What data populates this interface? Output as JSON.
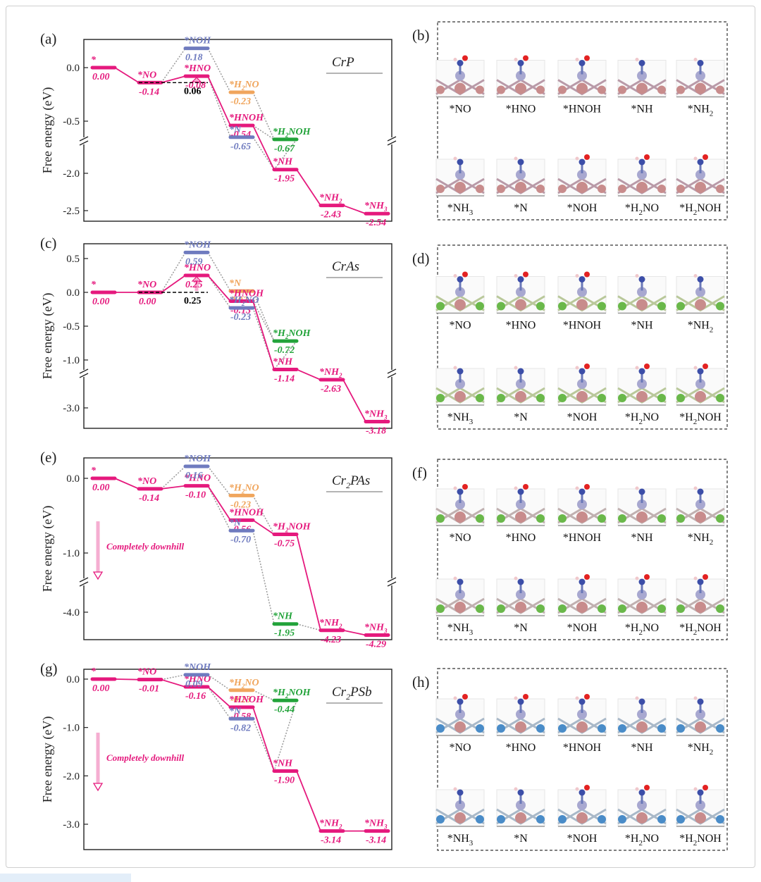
{
  "colors": {
    "magenta": "#e5197d",
    "blue": "#6f7bbf",
    "orange": "#f0a55c",
    "green": "#22a33a",
    "grey_dash": "#9a9a9a",
    "axis": "#222222",
    "N_atom": "#3c4ea8",
    "O_atom": "#e32222",
    "H_atom": "#f0c8cc",
    "Cr_atom": "#c88c8c",
    "P_atom": "#a8a8d0",
    "As_atom": "#6ab84a",
    "Sb_atom": "#4a8cc8"
  },
  "panels": [
    {
      "letter": "(a)",
      "title": "CrP",
      "ylabel": "Free energy (eV)",
      "upper_ticks": [
        0.0,
        -0.5
      ],
      "lower_ticks": [
        -2.0,
        -2.5
      ],
      "upper_labels": [
        "0.0",
        "-0.5"
      ],
      "lower_labels": [
        "-2.0",
        "-2.5"
      ],
      "barrier_label": "0.06",
      "levels": [
        {
          "species": "*",
          "sub": "",
          "tail": "",
          "value": "0.00",
          "series": "magenta"
        },
        {
          "species": "*NO",
          "sub": "",
          "tail": "",
          "value": "-0.14",
          "series": "magenta"
        },
        {
          "species": "*HNO",
          "sub": "",
          "tail": "",
          "value": "-0.08",
          "series": "magenta"
        },
        {
          "species": "*NOH",
          "sub": "",
          "tail": "",
          "value": "0.18",
          "series": "blue"
        },
        {
          "species": "*H",
          "sub": "2",
          "tail": "NO",
          "value": "-0.23",
          "series": "orange"
        },
        {
          "species": "*HNOH",
          "sub": "",
          "tail": "",
          "value": "-0.54",
          "series": "magenta"
        },
        {
          "species": "*N",
          "sub": "",
          "tail": "",
          "value": "-0.65",
          "series": "blue"
        },
        {
          "species": "*H",
          "sub": "2",
          "tail": "NOH",
          "value": "-0.67",
          "series": "green"
        },
        {
          "species": "*NH",
          "sub": "",
          "tail": "",
          "value": "-1.95",
          "series": "magenta"
        },
        {
          "species": "*NH",
          "sub": "2",
          "tail": "",
          "value": "-2.43",
          "series": "magenta"
        },
        {
          "species": "*NH",
          "sub": "3",
          "tail": "",
          "value": "-2.54",
          "series": "magenta"
        }
      ],
      "annotation": ""
    },
    {
      "letter": "(c)",
      "title": "CrAs",
      "ylabel": "Free energy (eV)",
      "upper_ticks": [
        0.5,
        0.0,
        -0.5,
        -1.0
      ],
      "lower_ticks": [
        -3.0
      ],
      "upper_labels": [
        "0.5",
        "0.0",
        "-0.5",
        "-1.0"
      ],
      "lower_labels": [
        "-3.0"
      ],
      "barrier_label": "0.25",
      "levels": [
        {
          "species": "*",
          "sub": "",
          "tail": "",
          "value": "0.00",
          "series": "magenta"
        },
        {
          "species": "*NO",
          "sub": "",
          "tail": "",
          "value": "0.00",
          "series": "magenta"
        },
        {
          "species": "*HNO",
          "sub": "",
          "tail": "",
          "value": "0.25",
          "series": "magenta"
        },
        {
          "species": "*NOH",
          "sub": "",
          "tail": "",
          "value": "0.59",
          "series": "blue"
        },
        {
          "species": "*N",
          "sub": "",
          "tail": "",
          "value": "0.02",
          "series": "orange"
        },
        {
          "species": "*HNOH",
          "sub": "",
          "tail": "",
          "value": "-0.13",
          "series": "magenta"
        },
        {
          "species": "*H",
          "sub": "2",
          "tail": "NO",
          "value": "-0.23",
          "series": "blue"
        },
        {
          "species": "*H",
          "sub": "2",
          "tail": "NOH",
          "value": "-0.72",
          "series": "green"
        },
        {
          "species": "*NH",
          "sub": "",
          "tail": "",
          "value": "-1.14",
          "series": "magenta"
        },
        {
          "species": "*NH",
          "sub": "2",
          "tail": "",
          "value": "-2.63",
          "series": "magenta"
        },
        {
          "species": "*NH",
          "sub": "3",
          "tail": "",
          "value": "-3.18",
          "series": "magenta"
        }
      ],
      "annotation": ""
    },
    {
      "letter": "(e)",
      "title": "Cr",
      "title_sub": "2",
      "title_tail": "PAs",
      "ylabel": "Free energy (eV)",
      "upper_ticks": [
        0.0,
        -1.0
      ],
      "lower_ticks": [
        -4.0
      ],
      "upper_labels": [
        "0.0",
        "-1.0"
      ],
      "lower_labels": [
        "-4.0"
      ],
      "barrier_label": "",
      "levels": [
        {
          "species": "*",
          "sub": "",
          "tail": "",
          "value": "0.00",
          "series": "magenta"
        },
        {
          "species": "*NO",
          "sub": "",
          "tail": "",
          "value": "-0.14",
          "series": "magenta"
        },
        {
          "species": "*HNO",
          "sub": "",
          "tail": "",
          "value": "-0.10",
          "series": "magenta"
        },
        {
          "species": "*NOH",
          "sub": "",
          "tail": "",
          "value": "0.16",
          "series": "blue"
        },
        {
          "species": "*H",
          "sub": "2",
          "tail": "NO",
          "value": "-0.23",
          "series": "orange"
        },
        {
          "species": "*HNOH",
          "sub": "",
          "tail": "",
          "value": "-0.56",
          "series": "magenta"
        },
        {
          "species": "*N",
          "sub": "",
          "tail": "",
          "value": "-0.70",
          "series": "blue"
        },
        {
          "species": "*H",
          "sub": "2",
          "tail": "NOH",
          "value": "-0.75",
          "series": "magenta"
        },
        {
          "species": "*NH",
          "sub": "",
          "tail": "",
          "value": "-1.95",
          "series": "green"
        },
        {
          "species": "*NH",
          "sub": "2",
          "tail": "",
          "value": "-4.23",
          "series": "magenta"
        },
        {
          "species": "*NH",
          "sub": "3",
          "tail": "",
          "value": "-4.29",
          "series": "magenta"
        }
      ],
      "annotation": "Completely downhill"
    },
    {
      "letter": "(g)",
      "title": "Cr",
      "title_sub": "2",
      "title_tail": "PSb",
      "ylabel": "Free energy (eV)",
      "upper_ticks": [
        0.0,
        -1.0,
        -2.0,
        -3.0
      ],
      "lower_ticks": [],
      "upper_labels": [
        "0.0",
        "-1.0",
        "-2.0",
        "-3.0"
      ],
      "lower_labels": [],
      "barrier_label": "",
      "levels": [
        {
          "species": "*",
          "sub": "",
          "tail": "",
          "value": "0.00",
          "series": "magenta"
        },
        {
          "species": "*NO",
          "sub": "",
          "tail": "",
          "value": "-0.01",
          "series": "magenta"
        },
        {
          "species": "*HNO",
          "sub": "",
          "tail": "",
          "value": "-0.16",
          "series": "magenta"
        },
        {
          "species": "*NOH",
          "sub": "",
          "tail": "",
          "value": "0.09",
          "series": "blue"
        },
        {
          "species": "*H",
          "sub": "2",
          "tail": "NO",
          "value": "-0.23",
          "series": "orange"
        },
        {
          "species": "*HNOH",
          "sub": "",
          "tail": "",
          "value": "-0.58",
          "series": "magenta"
        },
        {
          "species": "*N",
          "sub": "",
          "tail": "",
          "value": "-0.82",
          "series": "blue"
        },
        {
          "species": "*H",
          "sub": "2",
          "tail": "NOH",
          "value": "-0.44",
          "series": "green"
        },
        {
          "species": "*NH",
          "sub": "",
          "tail": "",
          "value": "-1.90",
          "series": "magenta"
        },
        {
          "species": "*NH",
          "sub": "2",
          "tail": "",
          "value": "-3.14",
          "series": "magenta"
        },
        {
          "species": "*NH",
          "sub": "3",
          "tail": "",
          "value": "-3.14",
          "series": "magenta"
        }
      ],
      "annotation": "Completely downhill"
    }
  ],
  "structures": [
    {
      "letter": "(b)",
      "substrate": "CrP"
    },
    {
      "letter": "(d)",
      "substrate": "CrAs"
    },
    {
      "letter": "(f)",
      "substrate": "Cr2PAs"
    },
    {
      "letter": "(h)",
      "substrate": "Cr2PSb"
    }
  ],
  "structure_labels_top": [
    {
      "main": "*NO",
      "sub": "",
      "tail": ""
    },
    {
      "main": "*HNO",
      "sub": "",
      "tail": ""
    },
    {
      "main": "*HNOH",
      "sub": "",
      "tail": ""
    },
    {
      "main": "*NH",
      "sub": "",
      "tail": ""
    },
    {
      "main": "*NH",
      "sub": "2",
      "tail": ""
    }
  ],
  "structure_labels_bottom": [
    {
      "main": "*NH",
      "sub": "3",
      "tail": ""
    },
    {
      "main": "*N",
      "sub": "",
      "tail": ""
    },
    {
      "main": "*NOH",
      "sub": "",
      "tail": ""
    },
    {
      "main": "*H",
      "sub": "2",
      "tail": "NO"
    },
    {
      "main": "*H",
      "sub": "2",
      "tail": "NOH"
    }
  ],
  "chart_data": [
    {
      "type": "line",
      "title": "CrP",
      "xlabel": "",
      "ylabel": "Free energy (eV)",
      "broken_axis": true,
      "ylim_upper": [
        -0.8,
        0.2
      ],
      "ylim_lower": [
        -2.6,
        -1.7
      ],
      "series": [
        {
          "name": "magenta pathway",
          "steps": [
            "*",
            "*NO",
            "*HNO",
            "*HNOH",
            "*NH",
            "*NH2",
            "*NH3"
          ],
          "values": [
            0.0,
            -0.14,
            -0.08,
            -0.54,
            -1.95,
            -2.43,
            -2.54
          ]
        },
        {
          "name": "blue",
          "steps": [
            "*NOH",
            "*N"
          ],
          "values": [
            0.18,
            -0.65
          ]
        },
        {
          "name": "orange",
          "steps": [
            "*H2NO"
          ],
          "values": [
            -0.23
          ]
        },
        {
          "name": "green",
          "steps": [
            "*H2NOH"
          ],
          "values": [
            -0.67
          ]
        }
      ],
      "annotations": [
        "0.06"
      ]
    },
    {
      "type": "line",
      "title": "CrAs",
      "xlabel": "",
      "ylabel": "Free energy (eV)",
      "broken_axis": true,
      "ylim_upper": [
        -1.3,
        0.7
      ],
      "ylim_lower": [
        -3.3,
        -2.2
      ],
      "series": [
        {
          "name": "magenta pathway",
          "steps": [
            "*",
            "*NO",
            "*HNO",
            "*HNOH",
            "*NH",
            "*NH2",
            "*NH3"
          ],
          "values": [
            0.0,
            0.0,
            0.25,
            -0.13,
            -1.14,
            -2.63,
            -3.18
          ]
        },
        {
          "name": "blue",
          "steps": [
            "*NOH",
            "*H2NO"
          ],
          "values": [
            0.59,
            -0.23
          ]
        },
        {
          "name": "orange",
          "steps": [
            "*N"
          ],
          "values": [
            0.02
          ]
        },
        {
          "name": "green",
          "steps": [
            "*H2NOH"
          ],
          "values": [
            -0.72
          ]
        }
      ],
      "annotations": [
        "0.25"
      ]
    },
    {
      "type": "line",
      "title": "Cr2PAs",
      "xlabel": "",
      "ylabel": "Free energy (eV)",
      "broken_axis": true,
      "ylim_upper": [
        -2.1,
        0.3
      ],
      "ylim_lower": [
        -4.4,
        -3.5
      ],
      "series": [
        {
          "name": "magenta pathway",
          "steps": [
            "*",
            "*NO",
            "*HNO",
            "*HNOH",
            "*H2NOH",
            "*NH2",
            "*NH3"
          ],
          "values": [
            0.0,
            -0.14,
            -0.1,
            -0.56,
            -0.75,
            -4.23,
            -4.29
          ]
        },
        {
          "name": "blue",
          "steps": [
            "*NOH",
            "*N"
          ],
          "values": [
            0.16,
            -0.7
          ]
        },
        {
          "name": "orange",
          "steps": [
            "*H2NO"
          ],
          "values": [
            -0.23
          ]
        },
        {
          "name": "green",
          "steps": [
            "*NH"
          ],
          "values": [
            -1.95
          ]
        }
      ],
      "annotations": [
        "Completely downhill"
      ]
    },
    {
      "type": "line",
      "title": "Cr2PSb",
      "xlabel": "",
      "ylabel": "Free energy (eV)",
      "broken_axis": false,
      "ylim": [
        -3.3,
        0.2
      ],
      "series": [
        {
          "name": "magenta pathway",
          "steps": [
            "*",
            "*NO",
            "*HNO",
            "*HNOH",
            "*NH",
            "*NH2",
            "*NH3"
          ],
          "values": [
            0.0,
            -0.01,
            -0.16,
            -0.58,
            -1.9,
            -3.14,
            -3.14
          ]
        },
        {
          "name": "blue",
          "steps": [
            "*NOH",
            "*N"
          ],
          "values": [
            0.09,
            -0.82
          ]
        },
        {
          "name": "orange",
          "steps": [
            "*H2NO"
          ],
          "values": [
            -0.23
          ]
        },
        {
          "name": "green",
          "steps": [
            "*H2NOH"
          ],
          "values": [
            -0.44
          ]
        }
      ],
      "annotations": [
        "Completely downhill"
      ]
    }
  ]
}
